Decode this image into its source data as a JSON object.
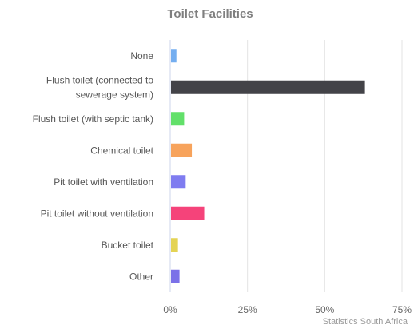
{
  "chart_data": {
    "type": "bar",
    "orientation": "horizontal",
    "title": "Toilet Facilities",
    "categories": [
      [
        "None"
      ],
      [
        "Flush toilet (connected to",
        "sewerage system)"
      ],
      [
        "Flush toilet (with septic tank)"
      ],
      [
        "Chemical toilet"
      ],
      [
        "Pit toilet with ventilation"
      ],
      [
        "Pit toilet without ventilation"
      ],
      [
        "Bucket toilet"
      ],
      [
        "Other"
      ]
    ],
    "values": [
      2,
      63,
      4.5,
      7,
      5,
      11,
      2.5,
      3
    ],
    "colors": [
      "#74aef0",
      "#434348",
      "#62e06a",
      "#f7a35c",
      "#7f7cf0",
      "#f5437a",
      "#e4d354",
      "#7b71e8"
    ],
    "xlim": [
      0,
      75
    ],
    "ticks": [
      "0%",
      "25%",
      "50%",
      "75%"
    ],
    "tick_values": [
      0,
      25,
      50,
      75
    ],
    "grid": true,
    "credit": "Statistics South Africa"
  }
}
